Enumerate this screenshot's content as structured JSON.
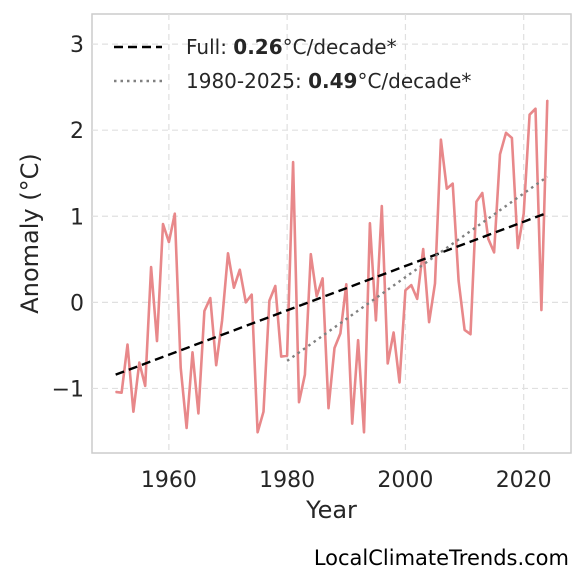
{
  "chart_data": {
    "type": "line",
    "xlabel": "Year",
    "ylabel": "Anomaly (°C)",
    "xlim": [
      1947,
      2028
    ],
    "ylim": [
      -1.75,
      3.35
    ],
    "x_ticks": [
      1960,
      1980,
      2000,
      2020
    ],
    "x_tick_labels": [
      "1960",
      "1980",
      "2000",
      "2020"
    ],
    "y_ticks": [
      -1,
      0,
      1,
      2,
      3
    ],
    "y_tick_labels": [
      "−1",
      "0",
      "1",
      "2",
      "3"
    ],
    "grid": true,
    "legend_position": "top-left",
    "series": [
      {
        "color": "#e8888a",
        "style": "solid",
        "x": [
          1951,
          1952,
          1953,
          1954,
          1955,
          1956,
          1957,
          1958,
          1959,
          1960,
          1961,
          1962,
          1963,
          1964,
          1965,
          1966,
          1967,
          1968,
          1969,
          1970,
          1971,
          1972,
          1973,
          1974,
          1975,
          1976,
          1977,
          1978,
          1979,
          1980,
          1981,
          1982,
          1983,
          1984,
          1985,
          1986,
          1987,
          1988,
          1989,
          1990,
          1991,
          1992,
          1993,
          1994,
          1995,
          1996,
          1997,
          1998,
          1999,
          2000,
          2001,
          2002,
          2003,
          2004,
          2005,
          2006,
          2007,
          2008,
          2009,
          2010,
          2011,
          2012,
          2013,
          2014,
          2015,
          2016,
          2017,
          2018,
          2019,
          2020,
          2021,
          2022,
          2023,
          2024
        ],
        "values": [
          -1.04,
          -1.05,
          -0.49,
          -1.27,
          -0.7,
          -0.97,
          0.41,
          -0.45,
          0.91,
          0.7,
          1.03,
          -0.76,
          -1.46,
          -0.58,
          -1.29,
          -0.1,
          0.05,
          -0.73,
          -0.21,
          0.57,
          0.17,
          0.38,
          0.0,
          0.09,
          -1.51,
          -1.27,
          0.02,
          0.19,
          -0.63,
          -0.62,
          1.63,
          -1.16,
          -0.84,
          0.56,
          0.07,
          0.28,
          -1.23,
          -0.53,
          -0.36,
          0.21,
          -1.41,
          -0.44,
          -1.51,
          0.92,
          -0.21,
          1.12,
          -0.71,
          -0.35,
          -0.93,
          0.14,
          0.2,
          0.04,
          0.62,
          -0.23,
          0.22,
          1.89,
          1.32,
          1.38,
          0.25,
          -0.32,
          -0.37,
          1.17,
          1.27,
          0.74,
          0.58,
          1.72,
          1.97,
          1.91,
          0.63,
          1.03,
          2.18,
          2.25,
          -0.09,
          2.35
        ]
      }
    ],
    "trend_lines": [
      {
        "label_prefix": "Full: ",
        "label_value": "0.26",
        "label_suffix": "°C/decade*",
        "color": "#000000",
        "style": "dashed",
        "x": [
          1951,
          2024
        ],
        "y": [
          -0.84,
          1.04
        ]
      },
      {
        "label_prefix": "1980-2025: ",
        "label_value": "0.49",
        "label_suffix": "°C/decade*",
        "color": "#808080",
        "style": "dotted",
        "x": [
          1980,
          2024
        ],
        "y": [
          -0.68,
          1.46
        ]
      }
    ]
  },
  "watermark": "LocalClimateTrends.com"
}
